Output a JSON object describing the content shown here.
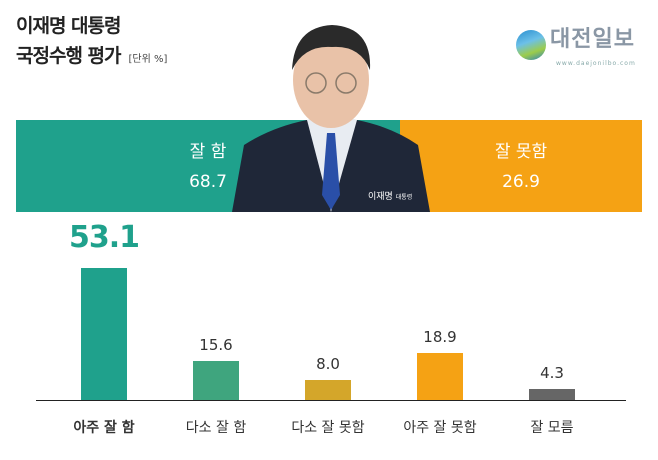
{
  "header": {
    "title_line1": "이재명 대통령",
    "title_line2": "국정수행 평가",
    "unit": "[단위 %]"
  },
  "logo": {
    "name": "대전일보",
    "url": "www.daejonilbo.com"
  },
  "photo": {
    "caption_name": "이재명",
    "caption_title": "대통령"
  },
  "summary": [
    {
      "label": "잘 함",
      "value": "68.7",
      "color": "#1fa18c"
    },
    {
      "label": "잘 못함",
      "value": "26.9",
      "color": "#f5a214"
    }
  ],
  "chart_data": {
    "type": "bar",
    "categories": [
      "아주 잘 함",
      "다소 잘 함",
      "다소 잘 못함",
      "아주 잘 못함",
      "잘 모름"
    ],
    "values": [
      53.1,
      15.6,
      8.0,
      18.9,
      4.3
    ],
    "value_labels": [
      "53.1",
      "15.6",
      "8.0",
      "18.9",
      "4.3"
    ],
    "colors": [
      "#1fa18c",
      "#3fa57e",
      "#d4a62a",
      "#f5a214",
      "#666666"
    ],
    "ylim": [
      0,
      55
    ],
    "grid": false
  }
}
